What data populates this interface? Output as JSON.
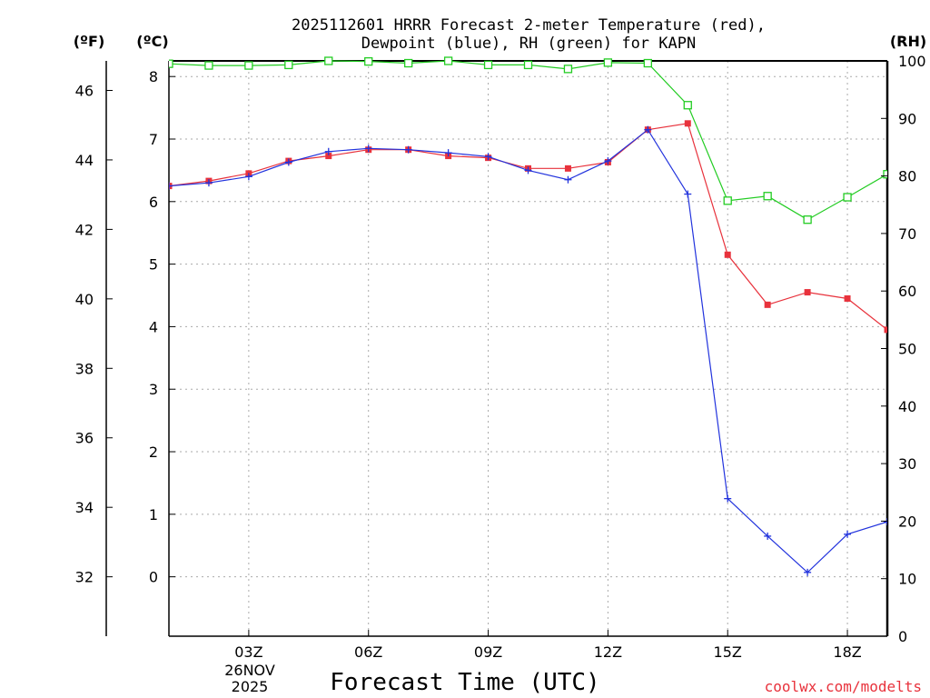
{
  "chart_data": {
    "type": "line",
    "title_line1": "2025112601 HRRR Forecast 2-meter Temperature (red),",
    "title_line2": "Dewpoint (blue), RH (green) for KAPN",
    "xlabel": "Forecast Time (UTC)",
    "credit": "coolwx.com/modelts",
    "units": {
      "fahrenheit": "(ºF)",
      "celsius": "(ºC)",
      "rh": "(RH)"
    },
    "x_hours": [
      1,
      2,
      3,
      4,
      5,
      6,
      7,
      8,
      9,
      10,
      11,
      12,
      13,
      14,
      15,
      16,
      17,
      18,
      19
    ],
    "x_tick_labels": [
      {
        "hour": 3,
        "label": "03Z"
      },
      {
        "hour": 6,
        "label": "06Z"
      },
      {
        "hour": 9,
        "label": "09Z"
      },
      {
        "hour": 12,
        "label": "12Z"
      },
      {
        "hour": 15,
        "label": "15Z"
      },
      {
        "hour": 18,
        "label": "18Z"
      }
    ],
    "date_label": {
      "day": "26NOV",
      "year": "2025"
    },
    "xlim": [
      1,
      19
    ],
    "celsius_axis": {
      "ylim": [
        -0.95,
        8.25
      ],
      "ticks": [
        0,
        1,
        2,
        3,
        4,
        5,
        6,
        7,
        8
      ]
    },
    "fahrenheit_axis": {
      "ylim": [
        30.29,
        46.85
      ],
      "ticks": [
        32,
        34,
        36,
        38,
        40,
        42,
        44,
        46
      ]
    },
    "rh_axis": {
      "ylim": [
        0,
        100
      ],
      "ticks": [
        0,
        10,
        20,
        30,
        40,
        50,
        60,
        70,
        80,
        90,
        100
      ]
    },
    "series": [
      {
        "name": "Temperature",
        "axis": "celsius",
        "color": "#e8323c",
        "marker": "filled-square",
        "values": [
          6.25,
          6.33,
          6.45,
          6.65,
          6.73,
          6.83,
          6.83,
          6.73,
          6.7,
          6.53,
          6.53,
          6.63,
          7.15,
          7.25,
          5.15,
          4.35,
          4.55,
          4.45,
          3.95
        ]
      },
      {
        "name": "Dewpoint",
        "axis": "celsius",
        "color": "#2233dd",
        "marker": "plus",
        "values": [
          6.25,
          6.3,
          6.4,
          6.63,
          6.8,
          6.85,
          6.83,
          6.78,
          6.72,
          6.5,
          6.35,
          6.65,
          7.15,
          6.12,
          1.25,
          0.65,
          0.07,
          0.68,
          0.88
        ]
      },
      {
        "name": "RH",
        "axis": "rh",
        "color": "#22cc22",
        "marker": "open-square",
        "values": [
          99.5,
          99.2,
          99.2,
          99.3,
          100,
          99.9,
          99.6,
          100,
          99.3,
          99.3,
          98.6,
          99.7,
          99.6,
          92.3,
          75.7,
          76.5,
          72.4,
          76.3,
          80.3
        ]
      }
    ]
  }
}
